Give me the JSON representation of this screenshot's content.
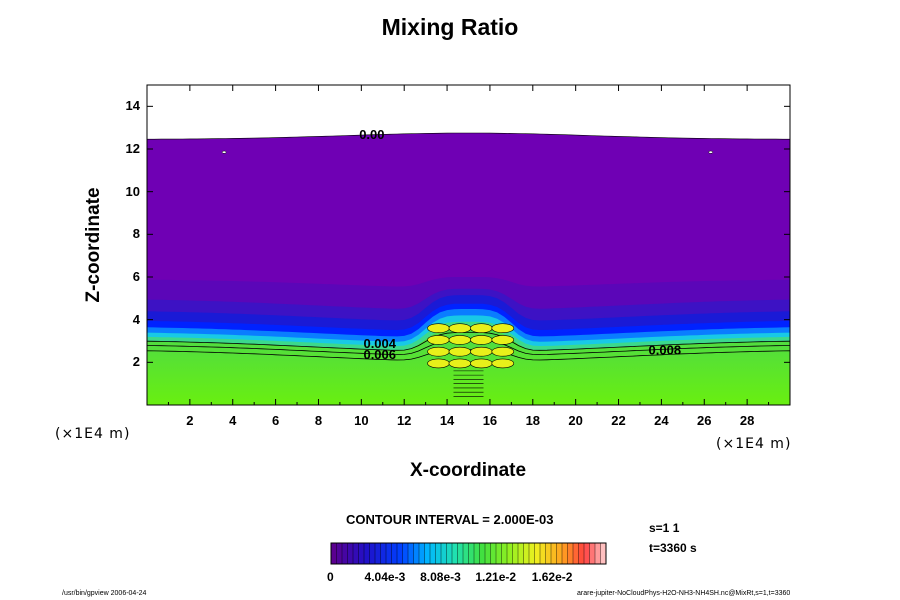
{
  "chart_data": {
    "type": "heatmap",
    "title": "Mixing Ratio",
    "xlabel": "X-coordinate",
    "ylabel": "Z-coordinate",
    "x_unit": "(×1E4 m)",
    "y_unit": "(×1E4 m)",
    "xlim": [
      0,
      30
    ],
    "ylim": [
      0,
      15
    ],
    "xticks": [
      "2",
      "4",
      "6",
      "8",
      "10",
      "12",
      "14",
      "16",
      "18",
      "20",
      "22",
      "24",
      "26",
      "28"
    ],
    "yticks": [
      "2",
      "4",
      "6",
      "8",
      "10",
      "12",
      "14"
    ],
    "contour_labels": [
      {
        "text": "0.00",
        "x": 10.6,
        "z": 12.7
      },
      {
        "text": "0.004",
        "x": 10.8,
        "z": 2.9
      },
      {
        "text": "0.006",
        "x": 10.8,
        "z": 2.4
      },
      {
        "text": "0.008",
        "x": 24.1,
        "z": 2.6
      }
    ],
    "contour_interval_text": "CONTOUR INTERVAL = 2.000E-03",
    "colorbar_ticks": [
      "0",
      "4.04e-3",
      "8.08e-3",
      "1.21e-2",
      "1.62e-2"
    ],
    "colorbar_range": [
      0,
      0.02
    ],
    "field_summary": {
      "lower_layer_value": 0.0085,
      "upper_layer_value": 0.0,
      "cloud_top_z": 12.7
    },
    "colors": {
      "upper": "#6f00b4",
      "lower": "#66ee11",
      "contour": "#000000"
    }
  },
  "step_info": {
    "s": "s=1 1",
    "t": "t=3360 s"
  },
  "footer": {
    "left": "/usr/bin/gpview 2006-04-24",
    "right": "arare-jupiter-NoCloudPhys-H2O-NH3-NH4SH.nc@MixRt,s=1,t=3360"
  }
}
